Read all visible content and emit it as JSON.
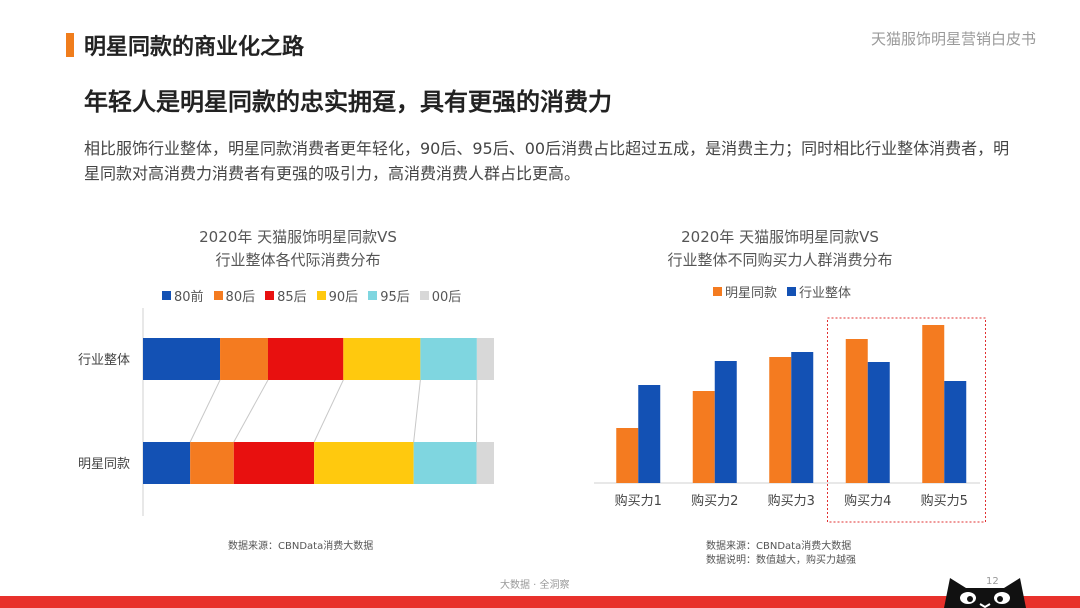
{
  "header": {
    "section_title": "明星同款的商业化之路",
    "report_name": "天猫服饰明星营销白皮书",
    "accent_color": "#f07d1c"
  },
  "headline": "年轻人是明星同款的忠实拥趸，具有更强的消费力",
  "summary": "相比服饰行业整体，明星同款消费者更年轻化，90后、95后、00后消费占比超过五成，是消费主力；同时相比行业整体消费者，明星同款对高消费力消费者有更强的吸引力，高消费消费人群占比更高。",
  "charts": {
    "left": {
      "title_line1": "2020年 天猫服饰明星同款VS",
      "title_line2": "行业整体各代际消费分布",
      "source": "数据来源：CBNData消费大数据"
    },
    "right": {
      "title_line1": "2020年 天猫服饰明星同款VS",
      "title_line2": "行业整体不同购买力人群消费分布",
      "source": "数据来源：CBNData消费大数据",
      "note": "数据说明：数值越大，购买力越强"
    }
  },
  "chart_data": [
    {
      "type": "bar",
      "orientation": "horizontal",
      "stacked": true,
      "normalized": true,
      "title": "2020年 天猫服饰明星同款VS 行业整体各代际消费分布",
      "categories": [
        "行业整体",
        "明星同款"
      ],
      "series": [
        {
          "name": "80前",
          "color": "#1351b4",
          "values": [
            22.5,
            13.5
          ]
        },
        {
          "name": "80后",
          "color": "#f47b20",
          "values": [
            14,
            12.5
          ]
        },
        {
          "name": "85后",
          "color": "#e8100f",
          "values": [
            22,
            23
          ]
        },
        {
          "name": "90后",
          "color": "#ffc90e",
          "values": [
            22.5,
            28.5
          ]
        },
        {
          "name": "95后",
          "color": "#7fd6e0",
          "values": [
            16.5,
            18
          ]
        },
        {
          "name": "00后",
          "color": "#d8d8d8",
          "values": [
            5,
            5
          ]
        }
      ],
      "legend": "top",
      "xlabel": "",
      "ylabel": ""
    },
    {
      "type": "bar",
      "title": "2020年 天猫服饰明星同款VS 行业整体不同购买力人群消费分布",
      "categories": [
        "购买力1",
        "购买力2",
        "购买力3",
        "购买力4",
        "购买力5"
      ],
      "series": [
        {
          "name": "明星同款",
          "color": "#f47b20",
          "values": [
            5.5,
            9.2,
            12.6,
            14.4,
            15.8
          ]
        },
        {
          "name": "行业整体",
          "color": "#1351b4",
          "values": [
            9.8,
            12.2,
            13.1,
            12.1,
            10.2
          ]
        }
      ],
      "ylim": [
        0,
        16
      ],
      "highlight": [
        "购买力4",
        "购买力5"
      ],
      "highlight_color": "#e03030",
      "legend": "top",
      "xlabel": "",
      "ylabel": ""
    }
  ],
  "footer": {
    "text": "大数据 · 全洞察",
    "page_number": "12",
    "band_color": "#e8312b"
  }
}
